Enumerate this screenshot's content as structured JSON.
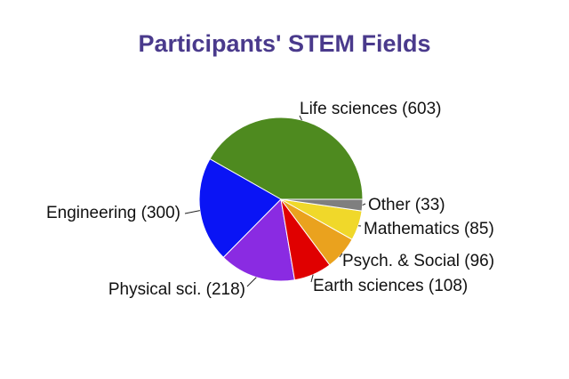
{
  "chart_data": {
    "type": "pie",
    "title": "Participants' STEM Fields",
    "slices": [
      {
        "label": "Life sciences (603)",
        "value": 603,
        "color": "#4e8a1f"
      },
      {
        "label": "Engineering (300)",
        "value": 300,
        "color": "#0a14f5"
      },
      {
        "label": "Physical sci. (218)",
        "value": 218,
        "color": "#8a2be2"
      },
      {
        "label": "Earth sciences (108)",
        "value": 108,
        "color": "#e00000"
      },
      {
        "label": "Psych. & Social (96)",
        "value": 96,
        "color": "#eaa21e"
      },
      {
        "label": "Mathematics (85)",
        "value": 85,
        "color": "#f0d82a"
      },
      {
        "label": "Other (33)",
        "value": 33,
        "color": "#7f7f7f"
      }
    ]
  }
}
